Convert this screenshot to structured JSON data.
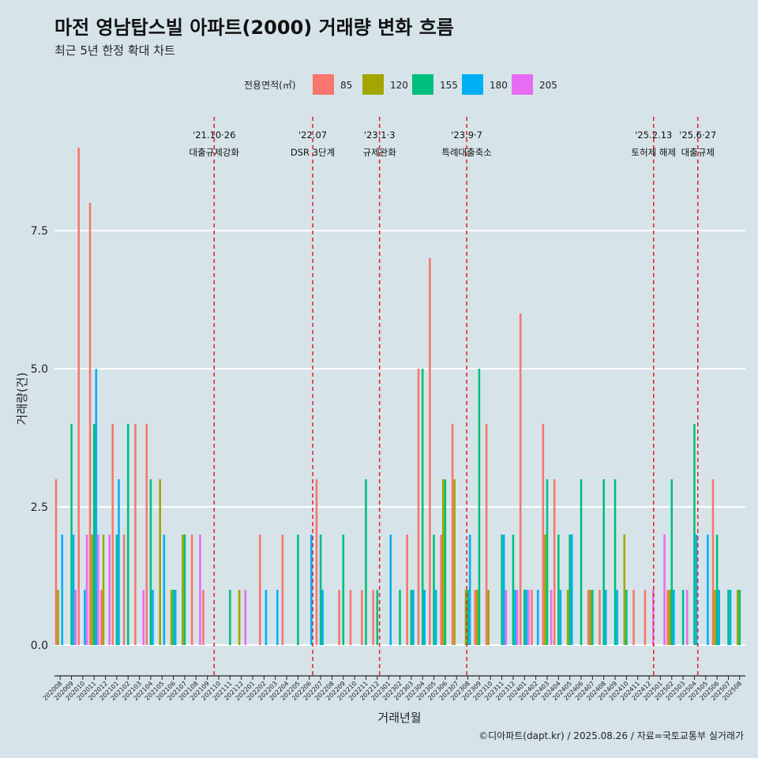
{
  "title": "마전 영남탑스빌 아파트(2000) 거래량 변화 흐름",
  "subtitle": "최근 5년 한정 확대 차트",
  "caption": "©디아파트(dapt.kr) / 2025.08.26 / 자료=국토교통부 실거래가",
  "chart_data": {
    "type": "bar",
    "xlabel": "거래년월",
    "ylabel": "거래량(건)",
    "ylim": [
      -0.4,
      9.6
    ],
    "yticks": [
      "0.0",
      "2.5",
      "5.0",
      "7.5"
    ],
    "ytick_values": [
      0,
      2.5,
      5,
      7.5
    ],
    "legend": {
      "title": "전용면적(㎡)",
      "position": "top",
      "entries": [
        {
          "label": "85",
          "color": "#F8766D"
        },
        {
          "label": "120",
          "color": "#A3A500"
        },
        {
          "label": "155",
          "color": "#00BF7D"
        },
        {
          "label": "180",
          "color": "#00B0F6"
        },
        {
          "label": "205",
          "color": "#E76BF3"
        }
      ]
    },
    "categories": [
      "202008",
      "202009",
      "202010",
      "202011",
      "202012",
      "202101",
      "202102",
      "202103",
      "202104",
      "202105",
      "202106",
      "202107",
      "202108",
      "202109",
      "202110",
      "202111",
      "202112",
      "202201",
      "202202",
      "202203",
      "202204",
      "202205",
      "202206",
      "202207",
      "202208",
      "202209",
      "202210",
      "202211",
      "202212",
      "202301",
      "202302",
      "202303",
      "202304",
      "202305",
      "202306",
      "202307",
      "202308",
      "202309",
      "202310",
      "202311",
      "202312",
      "202401",
      "202402",
      "202403",
      "202404",
      "202405",
      "202406",
      "202407",
      "202408",
      "202409",
      "202410",
      "202411",
      "202412",
      "202501",
      "202502",
      "202503",
      "202504",
      "202505",
      "202506",
      "202507",
      "202508"
    ],
    "series": [
      {
        "name": "85",
        "color": "#F8766D",
        "values": [
          3,
          0,
          9,
          8,
          1,
          4,
          2,
          4,
          4,
          0,
          0,
          0,
          2,
          1,
          0,
          0,
          0,
          0,
          2,
          0,
          2,
          0,
          0,
          3,
          0,
          1,
          1,
          1,
          1,
          0,
          0,
          2,
          5,
          7,
          2,
          4,
          0,
          1,
          4,
          0,
          0,
          6,
          1,
          4,
          3,
          0,
          0,
          1,
          1,
          0,
          0,
          1,
          1,
          0,
          1,
          0,
          0,
          0,
          3,
          0,
          0
        ]
      },
      {
        "name": "120",
        "color": "#A3A500",
        "values": [
          1,
          0,
          0,
          2,
          2,
          0,
          0,
          0,
          0,
          3,
          1,
          2,
          0,
          0,
          0,
          0,
          1,
          0,
          0,
          0,
          0,
          0,
          0,
          0,
          0,
          0,
          0,
          0,
          0,
          0,
          0,
          0,
          0,
          0,
          3,
          3,
          1,
          1,
          1,
          0,
          0,
          0,
          0,
          2,
          0,
          1,
          0,
          1,
          0,
          0,
          2,
          0,
          0,
          0,
          1,
          0,
          0,
          0,
          1,
          0,
          1
        ]
      },
      {
        "name": "155",
        "color": "#00BF7D",
        "values": [
          0,
          4,
          0,
          4,
          0,
          2,
          4,
          0,
          3,
          0,
          1,
          2,
          0,
          0,
          0,
          1,
          0,
          0,
          0,
          0,
          0,
          2,
          0,
          2,
          0,
          2,
          0,
          3,
          1,
          0,
          1,
          1,
          5,
          2,
          3,
          0,
          1,
          5,
          0,
          2,
          2,
          1,
          0,
          3,
          2,
          2,
          3,
          1,
          3,
          3,
          1,
          0,
          0,
          0,
          3,
          1,
          4,
          0,
          2,
          1,
          1
        ]
      },
      {
        "name": "180",
        "color": "#00B0F6",
        "values": [
          2,
          2,
          1,
          5,
          0,
          3,
          0,
          0,
          1,
          2,
          1,
          0,
          0,
          0,
          0,
          0,
          0,
          0,
          1,
          1,
          0,
          0,
          2,
          1,
          0,
          0,
          0,
          0,
          0,
          2,
          0,
          1,
          1,
          1,
          0,
          0,
          2,
          0,
          0,
          2,
          1,
          1,
          1,
          0,
          1,
          2,
          0,
          0,
          1,
          1,
          0,
          0,
          0,
          0,
          1,
          0,
          2,
          2,
          1,
          1,
          0
        ]
      },
      {
        "name": "205",
        "color": "#E76BF3",
        "values": [
          0,
          1,
          2,
          2,
          2,
          0,
          0,
          1,
          0,
          0,
          0,
          0,
          2,
          0,
          0,
          0,
          1,
          0,
          0,
          0,
          0,
          0,
          0,
          0,
          0,
          0,
          0,
          0,
          0,
          0,
          0,
          0,
          0,
          0,
          0,
          0,
          0,
          0,
          0,
          1,
          1,
          1,
          0,
          1,
          0,
          0,
          0,
          0,
          0,
          0,
          0,
          0,
          1,
          2,
          0,
          1,
          0,
          0,
          0,
          0,
          0
        ]
      }
    ],
    "events": [
      {
        "pos": 14.1,
        "line1": "'21.10·26",
        "line2": "대출규제강화"
      },
      {
        "pos": 22.8,
        "line1": "'22.07",
        "line2": "DSR 3단계"
      },
      {
        "pos": 28.7,
        "line1": "'23.1·3",
        "line2": "규제완화"
      },
      {
        "pos": 36.4,
        "line1": "'23.9·7",
        "line2": "특례대출축소"
      },
      {
        "pos": 52.9,
        "line1": "'25.2.13",
        "line2": "토허제 해제"
      },
      {
        "pos": 56.8,
        "line1": "'25.6·27",
        "line2": "대출규제"
      }
    ]
  }
}
